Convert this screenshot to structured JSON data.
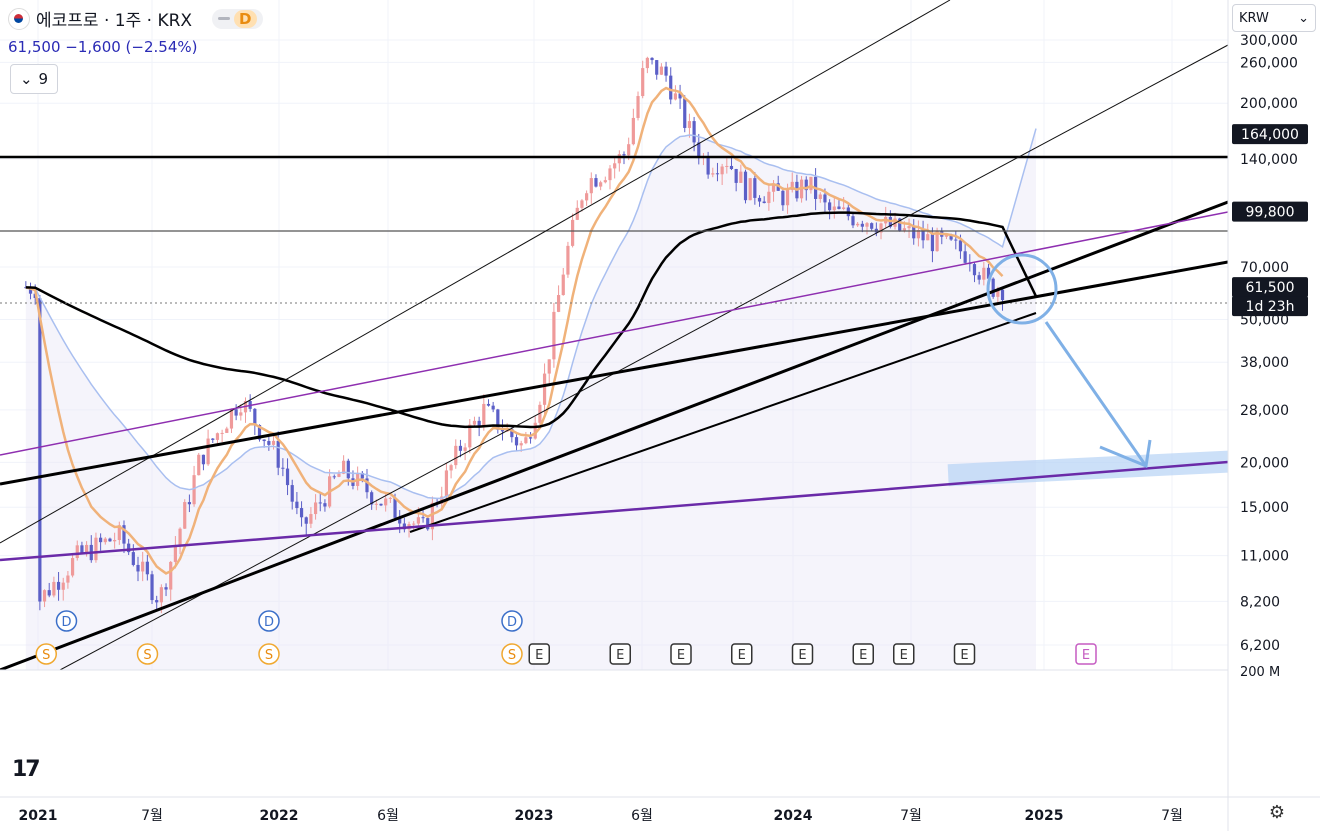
{
  "header": {
    "symbol": "에코프로 · 1주 · KRX",
    "badge": "D",
    "last_price": "61,500",
    "change": "−1,600 (−2.54%)",
    "legend_count": "9",
    "currency": "KRW"
  },
  "colors": {
    "up": "#ef9a9a",
    "down": "#5b5fc7",
    "ema_fast": "#f0b27a",
    "ema_slow": "#a9bff0",
    "ema_long": "#000000",
    "purple_line": "#7b2fa0",
    "arrow": "#7fb0e6"
  },
  "chart_data": {
    "type": "candlestick",
    "title": "에코프로 · 1주 · KRX",
    "y_scale": "log",
    "y_ticks": [
      "300,000",
      "260,000",
      "200,000",
      "140,000",
      "70,000",
      "50,000",
      "38,000",
      "28,000",
      "20,000",
      "15,000",
      "11,000",
      "8,200",
      "6,200"
    ],
    "x_ticks": [
      "2021",
      "7월",
      "2022",
      "6월",
      "2023",
      "6월",
      "2024",
      "7월",
      "2025",
      "7월"
    ],
    "price_labels": [
      {
        "text": "164,000",
        "value": 164000
      },
      {
        "text": "99,800",
        "value": 99800
      },
      {
        "text": "61,500",
        "value": 61500
      },
      {
        "text": "1d 23h",
        "value": 61500
      }
    ],
    "volume_label": "200 M",
    "events": {
      "D": [
        "2021-03",
        "2022-01",
        "2023-01"
      ],
      "S": [
        "2021-02",
        "2021-07",
        "2022-01",
        "2023-01"
      ],
      "E": [
        "2023-02",
        "2023-06",
        "2023-09",
        "2023-12",
        "2024-03",
        "2024-06",
        "2024-08",
        "2024-11",
        "2025-05"
      ],
      "E_upcoming": "2025-05"
    },
    "series_close": [
      {
        "date": "2021-01",
        "close": 8200
      },
      {
        "date": "2021-03",
        "close": 11000
      },
      {
        "date": "2021-05",
        "close": 12500
      },
      {
        "date": "2021-07",
        "close": 8300
      },
      {
        "date": "2021-09",
        "close": 20500
      },
      {
        "date": "2021-11",
        "close": 30000
      },
      {
        "date": "2022-01",
        "close": 20000
      },
      {
        "date": "2022-02",
        "close": 13000
      },
      {
        "date": "2022-04",
        "close": 19000
      },
      {
        "date": "2022-06",
        "close": 15500
      },
      {
        "date": "2022-08",
        "close": 13000
      },
      {
        "date": "2022-10",
        "close": 23000
      },
      {
        "date": "2022-11",
        "close": 28000
      },
      {
        "date": "2023-01",
        "close": 22000
      },
      {
        "date": "2023-02",
        "close": 34000
      },
      {
        "date": "2023-03",
        "close": 72000
      },
      {
        "date": "2023-04",
        "close": 120000
      },
      {
        "date": "2023-05",
        "close": 130000
      },
      {
        "date": "2023-06",
        "close": 145000
      },
      {
        "date": "2023-07",
        "close": 260000
      },
      {
        "date": "2023-08",
        "close": 240000
      },
      {
        "date": "2023-09",
        "close": 175000
      },
      {
        "date": "2023-10",
        "close": 135000
      },
      {
        "date": "2023-11",
        "close": 140000
      },
      {
        "date": "2023-12",
        "close": 115000
      },
      {
        "date": "2024-02",
        "close": 110000
      },
      {
        "date": "2024-03",
        "close": 120000
      },
      {
        "date": "2024-04",
        "close": 100000
      },
      {
        "date": "2024-06",
        "close": 95000
      },
      {
        "date": "2024-08",
        "close": 87000
      },
      {
        "date": "2024-10",
        "close": 80000
      },
      {
        "date": "2024-11",
        "close": 76000
      },
      {
        "date": "2024-12",
        "close": 61500
      }
    ]
  }
}
